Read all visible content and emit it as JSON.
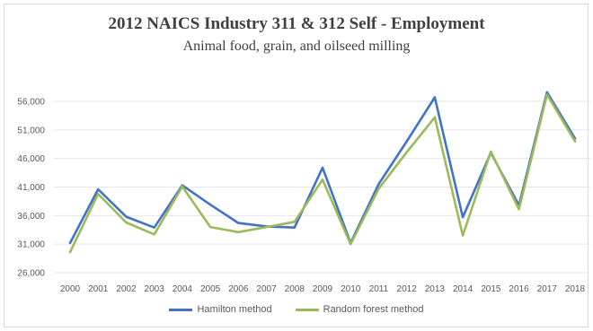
{
  "chart_data": {
    "type": "line",
    "title": "2012 NAICS Industry 311 & 312 Self - Employment",
    "subtitle": "Animal food, grain, and oilseed milling",
    "xlabel": "",
    "ylabel": "",
    "categories": [
      "2000",
      "2001",
      "2002",
      "2003",
      "2004",
      "2005",
      "2006",
      "2007",
      "2008",
      "2009",
      "2010",
      "2011",
      "2012",
      "2013",
      "2014",
      "2015",
      "2016",
      "2017",
      "2018"
    ],
    "y_ticks": [
      "26,000",
      "31,000",
      "36,000",
      "41,000",
      "46,000",
      "51,000",
      "56,000"
    ],
    "ylim": [
      26000,
      56000
    ],
    "grid": true,
    "legend_position": "bottom",
    "series": [
      {
        "name": "Hamilton method",
        "color": "#4472c4",
        "values": [
          31200,
          40600,
          35800,
          33900,
          41300,
          37900,
          34700,
          34100,
          33900,
          44400,
          31200,
          41500,
          49000,
          56700,
          35700,
          47000,
          37800,
          57600,
          49500
        ]
      },
      {
        "name": "Random forest method",
        "color": "#9bbb59",
        "values": [
          29600,
          39800,
          34800,
          32700,
          41100,
          34000,
          33100,
          34000,
          34900,
          42300,
          31000,
          40700,
          47100,
          53200,
          32500,
          47200,
          37100,
          57200,
          49000
        ]
      }
    ]
  }
}
